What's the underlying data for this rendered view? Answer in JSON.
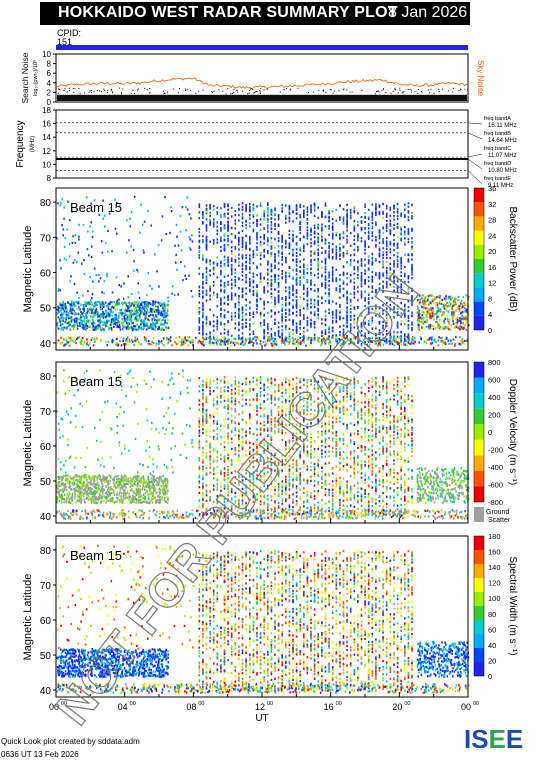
{
  "header": {
    "title": "HOKKAIDO WEST RADAR SUMMARY PLOT",
    "date": "8 Jan 2026",
    "cpid_label": "CPID:",
    "cpid_value": "151"
  },
  "watermark": "NOT FOR PUBLICATION",
  "footer": {
    "credit": "Quick Look plot created by sddata.adm",
    "created": "0636 UT 13 Feb 2026",
    "logo": "ISEE"
  },
  "colors": {
    "cpid_bar": "#2222ee",
    "noise_line": "#ff5500",
    "ground_scatter": "#a0a0a0"
  },
  "chart_data": [
    {
      "type": "line",
      "panel": "search-noise",
      "ylabel": "Search Noise",
      "yunit_label": "log₁₀(pwr₀)/10³",
      "right_label": "Sky Noise",
      "ylim": [
        0,
        10
      ],
      "yticks": [
        0,
        2,
        4,
        6,
        8,
        10
      ],
      "x": [
        0,
        1,
        2,
        3,
        4,
        5,
        6,
        7,
        8,
        9,
        10,
        11,
        12,
        13,
        14,
        15,
        16,
        17,
        18,
        19,
        20,
        21,
        22,
        23,
        24
      ],
      "series": [
        {
          "values": [
            3.2,
            3.6,
            3.8,
            3.9,
            3.8,
            4.0,
            4.5,
            4.8,
            4.9,
            3.4,
            3.3,
            3.0,
            3.1,
            3.2,
            3.4,
            3.6,
            3.9,
            4.2,
            4.4,
            4.6,
            3.7,
            3.4,
            3.6,
            3.9,
            3.6
          ]
        }
      ]
    },
    {
      "type": "line",
      "panel": "frequency",
      "ylabel": "Frequency",
      "yunit_label": "(MHz)",
      "ylim": [
        8,
        18
      ],
      "yticks": [
        8,
        10,
        12,
        14,
        16,
        18
      ],
      "bands": [
        {
          "name": "freq bandA",
          "mhz_label": "16.11 MHz",
          "value": 16.11
        },
        {
          "name": "freq bandB",
          "mhz_label": "14.64 MHz",
          "value": 14.64
        },
        {
          "name": "freq bandC",
          "mhz_label": "11.07 MHz",
          "value": 11.07
        },
        {
          "name": "freq bandD",
          "mhz_label": "10.80 MHz",
          "value": 10.8
        },
        {
          "name": "freq bandE",
          "mhz_label": "9.11 MHz",
          "value": 9.11
        }
      ],
      "series": [
        {
          "values": [
            10.8
          ]
        }
      ]
    },
    {
      "type": "heatmap",
      "panel": "power",
      "label": "Beam 15",
      "ylabel": "Magnetic Latitude",
      "ylim": [
        38,
        84
      ],
      "yticks": [
        40,
        50,
        60,
        70,
        80
      ],
      "colorbar_label": "Backscatter Power (dB)",
      "colorbar_ticks": [
        0,
        4,
        8,
        12,
        16,
        20,
        24,
        28,
        32,
        36
      ],
      "colorbar_colors": [
        "#2222ee",
        "#0044ff",
        "#00aaff",
        "#00cccc",
        "#33cc33",
        "#99ee00",
        "#ffff00",
        "#ffaa00",
        "#ff5500",
        "#ee0000"
      ]
    },
    {
      "type": "heatmap",
      "panel": "velocity",
      "label": "Beam 15",
      "ylabel": "Magnetic Latitude",
      "ylim": [
        38,
        84
      ],
      "yticks": [
        40,
        50,
        60,
        70,
        80
      ],
      "colorbar_label": "Doppler Velocity (m s⁻¹)",
      "colorbar_ticks": [
        -800,
        -600,
        -400,
        -200,
        0,
        200,
        400,
        600,
        800
      ],
      "colorbar_colors": [
        "#ee0000",
        "#ff5500",
        "#ffaa00",
        "#ffff00",
        "#99ee00",
        "#33cc33",
        "#00cccc",
        "#00aaff",
        "#2222ee"
      ],
      "ground_label": "Ground Scatter"
    },
    {
      "type": "heatmap",
      "panel": "width",
      "label": "Beam 15",
      "ylabel": "Magnetic Latitude",
      "ylim": [
        38,
        84
      ],
      "yticks": [
        40,
        50,
        60,
        70,
        80
      ],
      "colorbar_label": "Spectral Width (m s⁻¹)",
      "colorbar_ticks": [
        0,
        20,
        40,
        60,
        80,
        100,
        120,
        140,
        160,
        180
      ],
      "colorbar_colors": [
        "#2222ee",
        "#0044ff",
        "#00aaff",
        "#00cccc",
        "#33cc33",
        "#99ee00",
        "#ffff00",
        "#ffaa00",
        "#ff5500",
        "#ee0000"
      ],
      "xlabel": "UT",
      "xticks": [
        "00",
        "04",
        "08",
        "12",
        "16",
        "20",
        "00"
      ],
      "xtick_sup": "00",
      "xlim": [
        0,
        24
      ]
    }
  ]
}
